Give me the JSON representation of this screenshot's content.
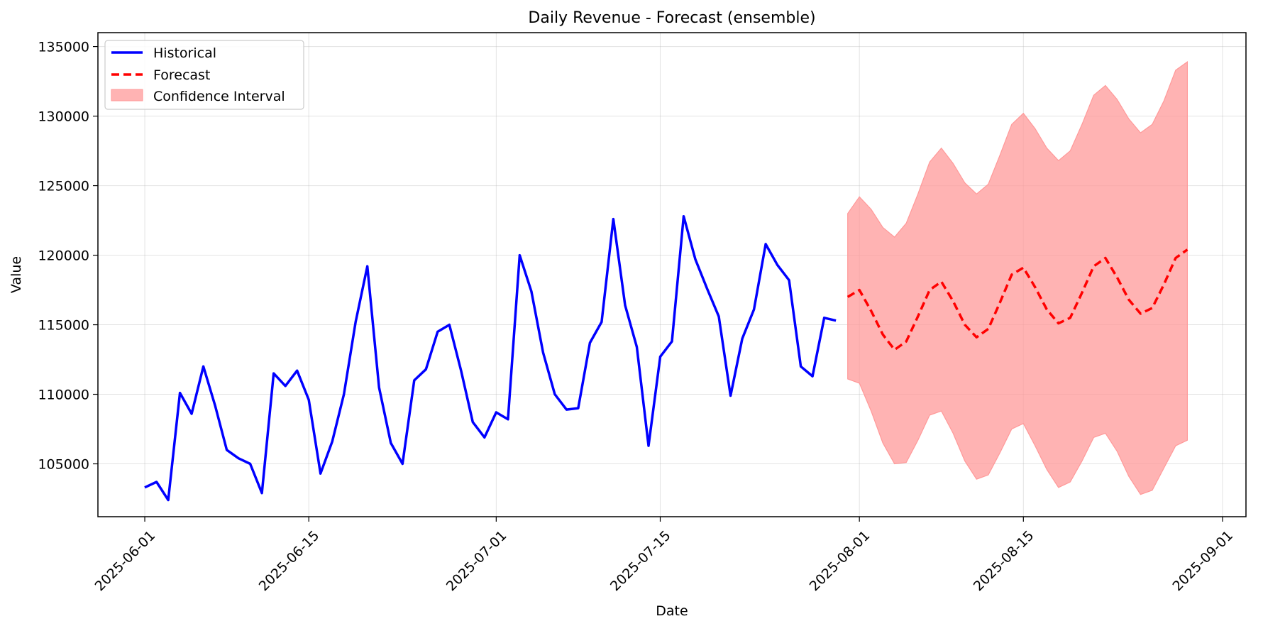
{
  "chart_data": {
    "type": "line",
    "title": "Daily Revenue - Forecast (ensemble)",
    "xlabel": "Date",
    "ylabel": "Value",
    "xlim": [
      "2025-05-28",
      "2025-09-03"
    ],
    "ylim": [
      101200,
      136000
    ],
    "x_ticks": [
      "2025-06-01",
      "2025-06-15",
      "2025-07-01",
      "2025-07-15",
      "2025-08-01",
      "2025-08-15",
      "2025-09-01"
    ],
    "y_ticks": [
      105000,
      110000,
      115000,
      120000,
      125000,
      130000,
      135000
    ],
    "grid": true,
    "legend_position": "top-left",
    "colors": {
      "historical": "#0000ff",
      "forecast": "#ff0000",
      "interval": "#ff9999"
    },
    "series": [
      {
        "name": "Historical",
        "style": "solid",
        "x_start": "2025-06-01",
        "values": [
          103300,
          103700,
          102400,
          110100,
          108600,
          112000,
          109200,
          106000,
          105400,
          105000,
          102900,
          111500,
          110600,
          111700,
          109600,
          104300,
          106600,
          110000,
          115200,
          119200,
          110500,
          106500,
          105000,
          111000,
          111800,
          114500,
          115000,
          111700,
          108000,
          106900,
          108700,
          108200,
          120000,
          117400,
          113000,
          110000,
          108900,
          109000,
          113700,
          115200,
          122600,
          116400,
          113400,
          106300,
          112700,
          113800,
          122800,
          119700,
          117600,
          115600,
          109900,
          114000,
          116100,
          120800,
          119300,
          118200,
          112000,
          111300,
          115500,
          115300
        ]
      },
      {
        "name": "Forecast",
        "style": "dashed",
        "x_start": "2025-07-31",
        "values": [
          117000,
          117500,
          116000,
          114300,
          113200,
          113800,
          115600,
          117500,
          118100,
          116700,
          115000,
          114100,
          114700,
          116600,
          118600,
          119100,
          117700,
          116100,
          115100,
          115500,
          117300,
          119200,
          119800,
          118400,
          116800,
          115800,
          116200,
          117900,
          119800,
          120400
        ]
      }
    ],
    "confidence_interval": {
      "name": "Confidence Interval",
      "x_start": "2025-07-31",
      "upper": [
        123000,
        124200,
        123300,
        122000,
        121300,
        122300,
        124400,
        126700,
        127700,
        126600,
        125200,
        124400,
        125100,
        127200,
        129400,
        130200,
        129100,
        127700,
        126800,
        127500,
        129400,
        131500,
        132200,
        131200,
        129800,
        128800,
        129400,
        131100,
        133300,
        133900
      ],
      "lower": [
        111100,
        110800,
        108800,
        106500,
        105000,
        105100,
        106700,
        108500,
        108800,
        107200,
        105200,
        103900,
        104200,
        105800,
        107500,
        107900,
        106300,
        104600,
        103300,
        103700,
        105200,
        106900,
        107200,
        105900,
        104100,
        102800,
        103100,
        104700,
        106300,
        106700
      ]
    }
  }
}
